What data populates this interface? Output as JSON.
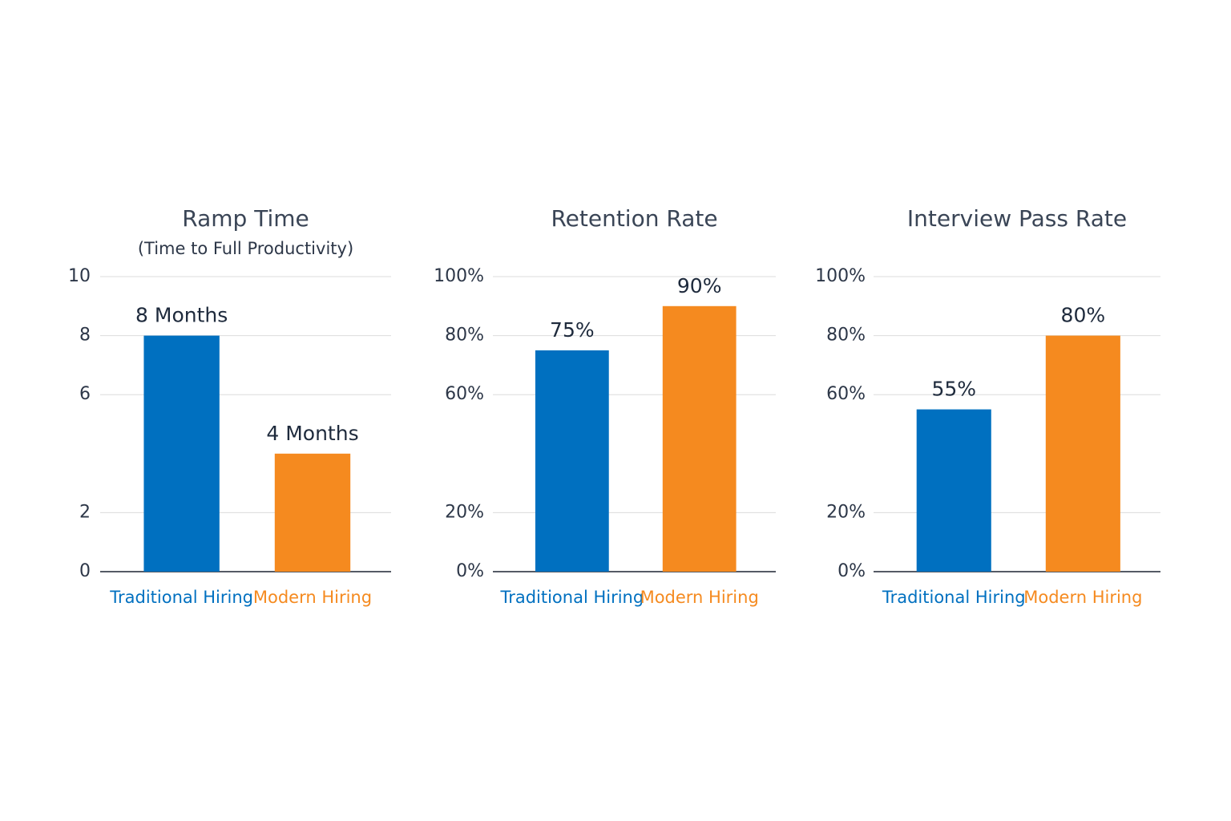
{
  "chart_data": [
    {
      "type": "bar",
      "title": "Ramp Time",
      "subtitle": "(Time to Full Productivity)",
      "categories": [
        "Traditional Hiring",
        "Modern Hiring"
      ],
      "values": [
        8,
        4
      ],
      "value_labels": [
        "8 Months",
        "4 Months"
      ],
      "colors": [
        "#0070c0",
        "#f58a1f"
      ],
      "ylim": [
        0,
        10
      ],
      "yticks": [
        0,
        2,
        6,
        8,
        10
      ],
      "grid": true
    },
    {
      "type": "bar",
      "title": "Retention Rate",
      "categories": [
        "Traditional Hiring",
        "Modern Hiring"
      ],
      "values": [
        75,
        90
      ],
      "value_labels": [
        "75%",
        "90%"
      ],
      "colors": [
        "#0070c0",
        "#f58a1f"
      ],
      "ylim": [
        0,
        100
      ],
      "yticks": [
        {
          "value": 0,
          "label": "0%"
        },
        {
          "value": 20,
          "label": "20%"
        },
        {
          "value": 60,
          "label": "60%"
        },
        {
          "value": 80,
          "label": "80%"
        },
        {
          "value": 100,
          "label": "100%"
        }
      ],
      "grid": true
    },
    {
      "type": "bar",
      "title": "Interview Pass Rate",
      "categories": [
        "Traditional Hiring",
        "Modern Hiring"
      ],
      "values": [
        55,
        80
      ],
      "value_labels": [
        "55%",
        "80%"
      ],
      "colors": [
        "#0070c0",
        "#f58a1f"
      ],
      "ylim": [
        0,
        100
      ],
      "yticks": [
        {
          "value": 0,
          "label": "0%"
        },
        {
          "value": 20,
          "label": "20%"
        },
        {
          "value": 60,
          "label": "60%"
        },
        {
          "value": 80,
          "label": "80%"
        },
        {
          "value": 100,
          "label": "100%"
        }
      ],
      "grid": true
    }
  ]
}
